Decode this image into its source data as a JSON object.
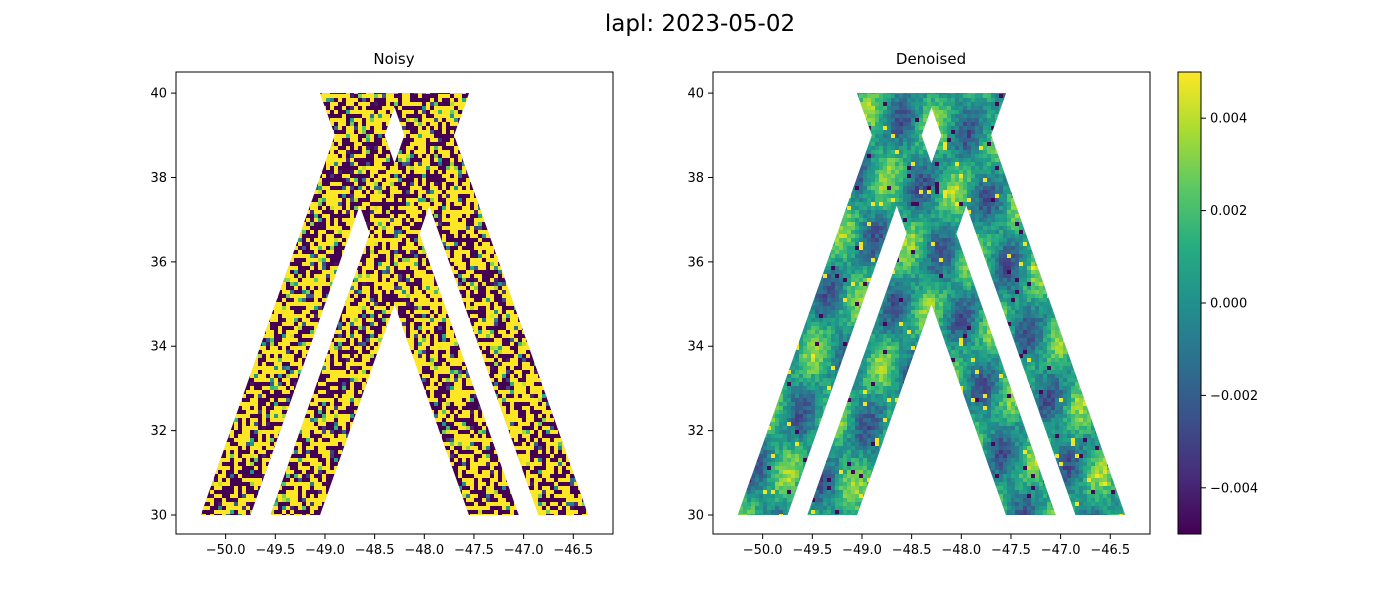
{
  "suptitle": "lapl: 2023-05-02",
  "panels": [
    {
      "title": "Noisy"
    },
    {
      "title": "Denoised"
    }
  ],
  "colorbar": {
    "colormap": "viridis",
    "range": [
      -0.005,
      0.005
    ],
    "ticks": [
      0.004,
      0.002,
      0.0,
      -0.002,
      -0.004
    ],
    "tick_labels": [
      "0.004",
      "0.002",
      "0.000",
      "−0.002",
      "−0.004"
    ]
  },
  "chart_data": [
    {
      "type": "heatmap",
      "title": "Noisy",
      "xlabel": "",
      "ylabel": "",
      "xlim": [
        -50.5,
        -46.1
      ],
      "ylim": [
        29.55,
        40.5
      ],
      "xticks": [
        -50.0,
        -49.5,
        -49.0,
        -48.5,
        -48.0,
        -47.5,
        -47.0,
        -46.5
      ],
      "xtick_labels": [
        "−50.0",
        "−49.5",
        "−49.0",
        "−48.5",
        "−48.0",
        "−47.5",
        "−47.0",
        "−46.5"
      ],
      "yticks": [
        30,
        32,
        34,
        36,
        38,
        40
      ],
      "ytick_labels": [
        "30",
        "32",
        "34",
        "36",
        "38",
        "40"
      ],
      "swaths": [
        {
          "lat_range": [
            30,
            40
          ],
          "lon_at_lat30": [
            -50.25,
            -49.75
          ],
          "lon_at_lat40": [
            -48.75,
            -48.25
          ]
        },
        {
          "lat_range": [
            30,
            40
          ],
          "lon_at_lat30": [
            -49.55,
            -49.05
          ],
          "lon_at_lat40": [
            -48.05,
            -47.55
          ]
        },
        {
          "lat_range": [
            30,
            40
          ],
          "lon_at_lat30": [
            -47.55,
            -47.05
          ],
          "lon_at_lat40": [
            -49.05,
            -48.55
          ]
        },
        {
          "lat_range": [
            30,
            40
          ],
          "lon_at_lat30": [
            -46.85,
            -46.35
          ],
          "lon_at_lat40": [
            -48.35,
            -47.85
          ]
        }
      ],
      "value_description": "saturated noise, values mostly at colour limits ±0.005"
    },
    {
      "type": "heatmap",
      "title": "Denoised",
      "xlabel": "",
      "ylabel": "",
      "xlim": [
        -50.5,
        -46.1
      ],
      "ylim": [
        29.55,
        40.5
      ],
      "xticks": [
        -50.0,
        -49.5,
        -49.0,
        -48.5,
        -48.0,
        -47.5,
        -47.0,
        -46.5
      ],
      "xtick_labels": [
        "−50.0",
        "−49.5",
        "−49.0",
        "−48.5",
        "−48.0",
        "−47.5",
        "−47.0",
        "−46.5"
      ],
      "yticks": [
        30,
        32,
        34,
        36,
        38,
        40
      ],
      "ytick_labels": [
        "30",
        "32",
        "34",
        "36",
        "38",
        "40"
      ],
      "swaths": [
        {
          "lat_range": [
            30,
            40
          ],
          "lon_at_lat30": [
            -50.25,
            -49.75
          ],
          "lon_at_lat40": [
            -48.75,
            -48.25
          ]
        },
        {
          "lat_range": [
            30,
            40
          ],
          "lon_at_lat30": [
            -49.55,
            -49.05
          ],
          "lon_at_lat40": [
            -48.05,
            -47.55
          ]
        },
        {
          "lat_range": [
            30,
            40
          ],
          "lon_at_lat30": [
            -47.55,
            -47.05
          ],
          "lon_at_lat40": [
            -49.05,
            -48.55
          ]
        },
        {
          "lat_range": [
            30,
            40
          ],
          "lon_at_lat30": [
            -46.85,
            -46.35
          ],
          "lon_at_lat40": [
            -48.35,
            -47.85
          ]
        }
      ],
      "value_description": "smooth field mostly between -0.002 and 0.002 with scattered extremes"
    }
  ]
}
